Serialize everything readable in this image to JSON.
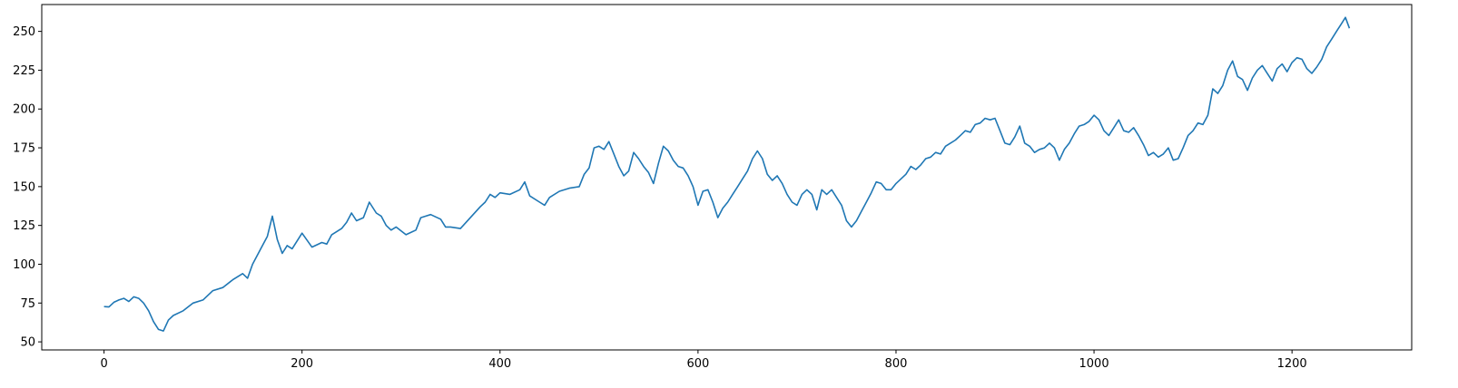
{
  "chart_data": {
    "type": "line",
    "title": "",
    "xlabel": "",
    "ylabel": "",
    "xlim": [
      -62.9,
      1320.9
    ],
    "ylim": [
      44.8,
      267.3
    ],
    "xticks": [
      0,
      200,
      400,
      600,
      800,
      1000,
      1200
    ],
    "xtick_labels": [
      "0",
      "200",
      "400",
      "600",
      "800",
      "1000",
      "1200"
    ],
    "yticks": [
      50,
      75,
      100,
      125,
      150,
      175,
      200,
      225,
      250
    ],
    "ytick_labels": [
      "50",
      "75",
      "100",
      "125",
      "150",
      "175",
      "200",
      "225",
      "250"
    ],
    "grid": false,
    "legend": "none",
    "series": [
      {
        "color": "#1f77b4",
        "points": [
          [
            0,
            72.7
          ],
          [
            5,
            72.5
          ],
          [
            10,
            75.5
          ],
          [
            15,
            77
          ],
          [
            20,
            78
          ],
          [
            25,
            76
          ],
          [
            30,
            79
          ],
          [
            35,
            78
          ],
          [
            40,
            75
          ],
          [
            45,
            70
          ],
          [
            50,
            63
          ],
          [
            55,
            58
          ],
          [
            60,
            57
          ],
          [
            65,
            64
          ],
          [
            70,
            67
          ],
          [
            80,
            70
          ],
          [
            90,
            75
          ],
          [
            100,
            77
          ],
          [
            110,
            83
          ],
          [
            120,
            85
          ],
          [
            130,
            90
          ],
          [
            140,
            94
          ],
          [
            145,
            91
          ],
          [
            150,
            100
          ],
          [
            160,
            112
          ],
          [
            165,
            118
          ],
          [
            170,
            131
          ],
          [
            175,
            116
          ],
          [
            180,
            107
          ],
          [
            185,
            112
          ],
          [
            190,
            110
          ],
          [
            200,
            120
          ],
          [
            210,
            111
          ],
          [
            220,
            114
          ],
          [
            225,
            113
          ],
          [
            230,
            119
          ],
          [
            240,
            123
          ],
          [
            245,
            127
          ],
          [
            250,
            133
          ],
          [
            255,
            128
          ],
          [
            262,
            130
          ],
          [
            268,
            140
          ],
          [
            275,
            133
          ],
          [
            280,
            131
          ],
          [
            285,
            125
          ],
          [
            290,
            122
          ],
          [
            295,
            124
          ],
          [
            305,
            119
          ],
          [
            315,
            122
          ],
          [
            320,
            130
          ],
          [
            325,
            131
          ],
          [
            330,
            132
          ],
          [
            340,
            129
          ],
          [
            345,
            124
          ],
          [
            350,
            124
          ],
          [
            360,
            123
          ],
          [
            370,
            130
          ],
          [
            380,
            137
          ],
          [
            385,
            140
          ],
          [
            390,
            145
          ],
          [
            395,
            143
          ],
          [
            400,
            146
          ],
          [
            410,
            145
          ],
          [
            420,
            148
          ],
          [
            425,
            153
          ],
          [
            430,
            144
          ],
          [
            440,
            140
          ],
          [
            445,
            138
          ],
          [
            450,
            143
          ],
          [
            460,
            147
          ],
          [
            470,
            149
          ],
          [
            480,
            150
          ],
          [
            485,
            158
          ],
          [
            490,
            162
          ],
          [
            495,
            175
          ],
          [
            500,
            176
          ],
          [
            505,
            174
          ],
          [
            510,
            179
          ],
          [
            515,
            171
          ],
          [
            520,
            163
          ],
          [
            525,
            157
          ],
          [
            530,
            160
          ],
          [
            535,
            172
          ],
          [
            540,
            168
          ],
          [
            545,
            163
          ],
          [
            550,
            159
          ],
          [
            555,
            152
          ],
          [
            560,
            165
          ],
          [
            565,
            176
          ],
          [
            570,
            173
          ],
          [
            575,
            167
          ],
          [
            580,
            163
          ],
          [
            585,
            162
          ],
          [
            590,
            157
          ],
          [
            595,
            150
          ],
          [
            600,
            138
          ],
          [
            605,
            147
          ],
          [
            610,
            148
          ],
          [
            615,
            140
          ],
          [
            620,
            130
          ],
          [
            625,
            136
          ],
          [
            630,
            140
          ],
          [
            635,
            145
          ],
          [
            640,
            150
          ],
          [
            645,
            155
          ],
          [
            650,
            160
          ],
          [
            655,
            168
          ],
          [
            660,
            173
          ],
          [
            665,
            168
          ],
          [
            670,
            158
          ],
          [
            675,
            154
          ],
          [
            680,
            157
          ],
          [
            685,
            152
          ],
          [
            690,
            145
          ],
          [
            695,
            140
          ],
          [
            700,
            138
          ],
          [
            705,
            145
          ],
          [
            710,
            148
          ],
          [
            715,
            145
          ],
          [
            720,
            135
          ],
          [
            725,
            148
          ],
          [
            730,
            145
          ],
          [
            735,
            148
          ],
          [
            740,
            143
          ],
          [
            745,
            138
          ],
          [
            750,
            128
          ],
          [
            755,
            124
          ],
          [
            760,
            128
          ],
          [
            765,
            134
          ],
          [
            770,
            140
          ],
          [
            775,
            146
          ],
          [
            780,
            153
          ],
          [
            785,
            152
          ],
          [
            790,
            148
          ],
          [
            795,
            148
          ],
          [
            800,
            152
          ],
          [
            810,
            158
          ],
          [
            815,
            163
          ],
          [
            820,
            161
          ],
          [
            825,
            164
          ],
          [
            830,
            168
          ],
          [
            835,
            169
          ],
          [
            840,
            172
          ],
          [
            845,
            171
          ],
          [
            850,
            176
          ],
          [
            855,
            178
          ],
          [
            860,
            180
          ],
          [
            865,
            183
          ],
          [
            870,
            186
          ],
          [
            875,
            185
          ],
          [
            880,
            190
          ],
          [
            885,
            191
          ],
          [
            890,
            194
          ],
          [
            895,
            193
          ],
          [
            900,
            194
          ],
          [
            905,
            186
          ],
          [
            910,
            178
          ],
          [
            915,
            177
          ],
          [
            920,
            182
          ],
          [
            925,
            189
          ],
          [
            930,
            178
          ],
          [
            935,
            176
          ],
          [
            940,
            172
          ],
          [
            945,
            174
          ],
          [
            950,
            175
          ],
          [
            955,
            178
          ],
          [
            960,
            175
          ],
          [
            965,
            167
          ],
          [
            970,
            174
          ],
          [
            975,
            178
          ],
          [
            980,
            184
          ],
          [
            985,
            189
          ],
          [
            990,
            190
          ],
          [
            995,
            192
          ],
          [
            1000,
            196
          ],
          [
            1005,
            193
          ],
          [
            1010,
            186
          ],
          [
            1015,
            183
          ],
          [
            1020,
            188
          ],
          [
            1025,
            193
          ],
          [
            1030,
            186
          ],
          [
            1035,
            185
          ],
          [
            1040,
            188
          ],
          [
            1045,
            183
          ],
          [
            1050,
            177
          ],
          [
            1055,
            170
          ],
          [
            1060,
            172
          ],
          [
            1065,
            169
          ],
          [
            1070,
            171
          ],
          [
            1075,
            175
          ],
          [
            1080,
            167
          ],
          [
            1085,
            168
          ],
          [
            1090,
            175
          ],
          [
            1095,
            183
          ],
          [
            1100,
            186
          ],
          [
            1105,
            191
          ],
          [
            1110,
            190
          ],
          [
            1115,
            196
          ],
          [
            1120,
            213
          ],
          [
            1125,
            210
          ],
          [
            1130,
            215
          ],
          [
            1135,
            225
          ],
          [
            1140,
            231
          ],
          [
            1145,
            221
          ],
          [
            1150,
            219
          ],
          [
            1155,
            212
          ],
          [
            1160,
            220
          ],
          [
            1165,
            225
          ],
          [
            1170,
            228
          ],
          [
            1175,
            223
          ],
          [
            1180,
            218
          ],
          [
            1185,
            226
          ],
          [
            1190,
            229
          ],
          [
            1195,
            224
          ],
          [
            1200,
            230
          ],
          [
            1205,
            233
          ],
          [
            1210,
            232
          ],
          [
            1215,
            226
          ],
          [
            1220,
            223
          ],
          [
            1225,
            227
          ],
          [
            1230,
            232
          ],
          [
            1235,
            240
          ],
          [
            1240,
            245
          ],
          [
            1245,
            250
          ],
          [
            1250,
            255
          ],
          [
            1254,
            259
          ],
          [
            1258,
            252
          ]
        ]
      }
    ]
  }
}
